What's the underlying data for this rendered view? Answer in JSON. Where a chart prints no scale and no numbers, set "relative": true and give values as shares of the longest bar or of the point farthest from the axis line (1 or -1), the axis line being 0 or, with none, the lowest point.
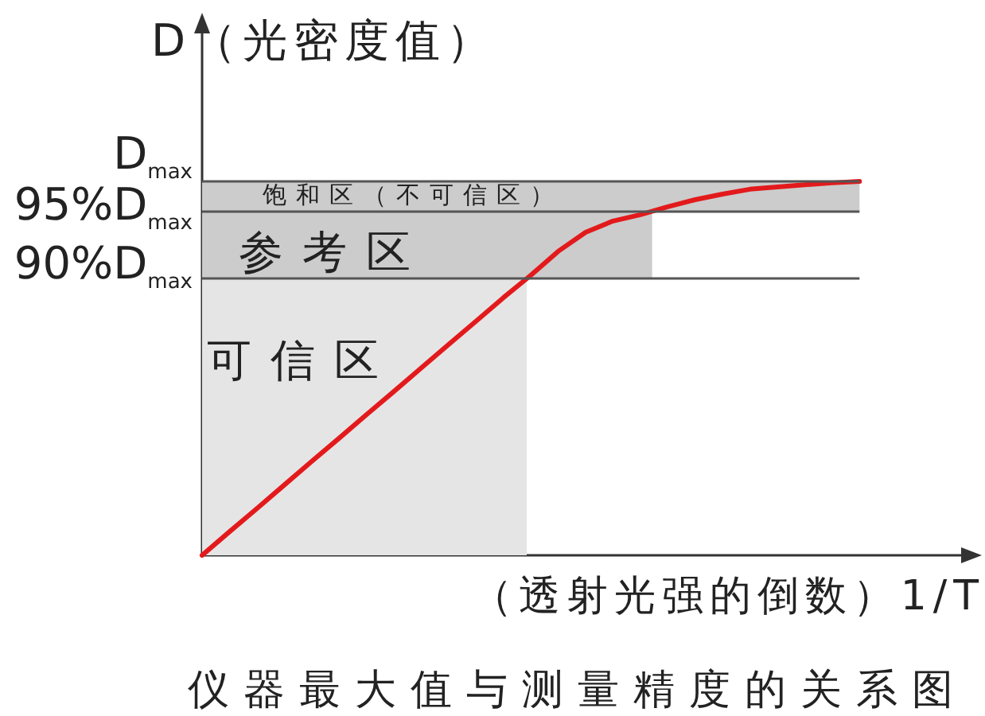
{
  "chart_data": {
    "type": "line",
    "title": "仪器最大值与测量精度的关系图",
    "xlabel": "（透射光强的倒数）1/T",
    "ylabel": "D（光密度值）",
    "categories": [
      null,
      null,
      null,
      null,
      null,
      null,
      null,
      null,
      null,
      null,
      null,
      null,
      null,
      null,
      null,
      null,
      null,
      null,
      null,
      null,
      null,
      null,
      null,
      null,
      null,
      null,
      null,
      null,
      null
    ],
    "series": [
      {
        "color": "#e31a1c",
        "values": [
          0,
          0.063,
          0.125,
          0.188,
          0.251,
          0.313,
          0.376,
          0.438,
          0.501,
          0.564,
          0.626,
          0.689,
          0.749,
          0.813,
          0.864,
          0.894,
          0.911,
          0.932,
          0.951,
          0.966,
          0.979,
          0.985,
          0.991,
          0.996,
          1,
          null,
          null,
          null,
          null
        ]
      }
    ],
    "relative": true,
    "ref_lines": [
      {
        "axis": "y",
        "value": 1,
        "label": "D$_{max}$",
        "color": "#555555"
      },
      {
        "axis": "y",
        "value": 0.92,
        "label": "95%D$_{max}$",
        "color": "#555555"
      },
      {
        "axis": "y",
        "value": 0.74,
        "label": "90%D$_{max}$",
        "color": "#555555"
      }
    ],
    "bands": [
      {
        "axis": "y",
        "from": 0,
        "to": 0.74,
        "label": "可信区",
        "color": "#e5e5e5"
      },
      {
        "axis": "y",
        "from": 0.74,
        "to": 0.92,
        "label": "参考区",
        "color": "#cccccc"
      },
      {
        "axis": "y",
        "from": 0.92,
        "to": 1,
        "label": "饱和区（不可信区）",
        "color": "#cccccc"
      }
    ],
    "marker": "none",
    "line_style": "solid"
  }
}
